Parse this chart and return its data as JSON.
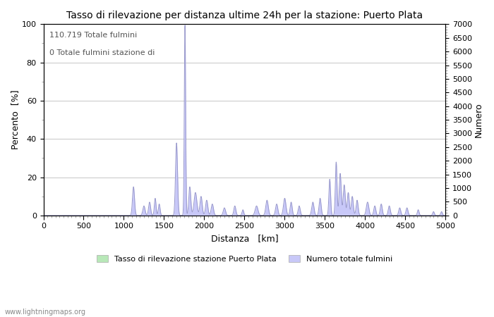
{
  "title": "Tasso di rilevazione per distanza ultime 24h per la stazione: Puerto Plata",
  "xlabel": "Distanza   [km]",
  "ylabel_left": "Percento  [%]",
  "ylabel_right": "Numero",
  "annotation_line1": "110.719 Totale fulmini",
  "annotation_line2": "0 Totale fulmini stazione di",
  "xlim": [
    0,
    5000
  ],
  "ylim_left": [
    0,
    100
  ],
  "ylim_right": [
    0,
    7000
  ],
  "xticks": [
    0,
    500,
    1000,
    1500,
    2000,
    2500,
    3000,
    3500,
    4000,
    4500,
    5000
  ],
  "yticks_left": [
    0,
    20,
    40,
    60,
    80,
    100
  ],
  "yticks_right": [
    0,
    500,
    1000,
    1500,
    2000,
    2500,
    3000,
    3500,
    4000,
    4500,
    5000,
    5500,
    6000,
    6500,
    7000
  ],
  "legend_label1": "Tasso di rilevazione stazione Puerto Plata",
  "legend_label2": "Numero totale fulmini",
  "legend_color1": "#b8e8b8",
  "legend_color2": "#c8c8f8",
  "fill_color_blue": "#c8c8f8",
  "fill_color_green": "#b8e8b8",
  "line_color": "#9999cc",
  "bg_color": "#ffffff",
  "grid_color": "#cccccc",
  "watermark": "www.lightningmaps.org",
  "title_fontsize": 10,
  "axis_fontsize": 9,
  "tick_fontsize": 8
}
